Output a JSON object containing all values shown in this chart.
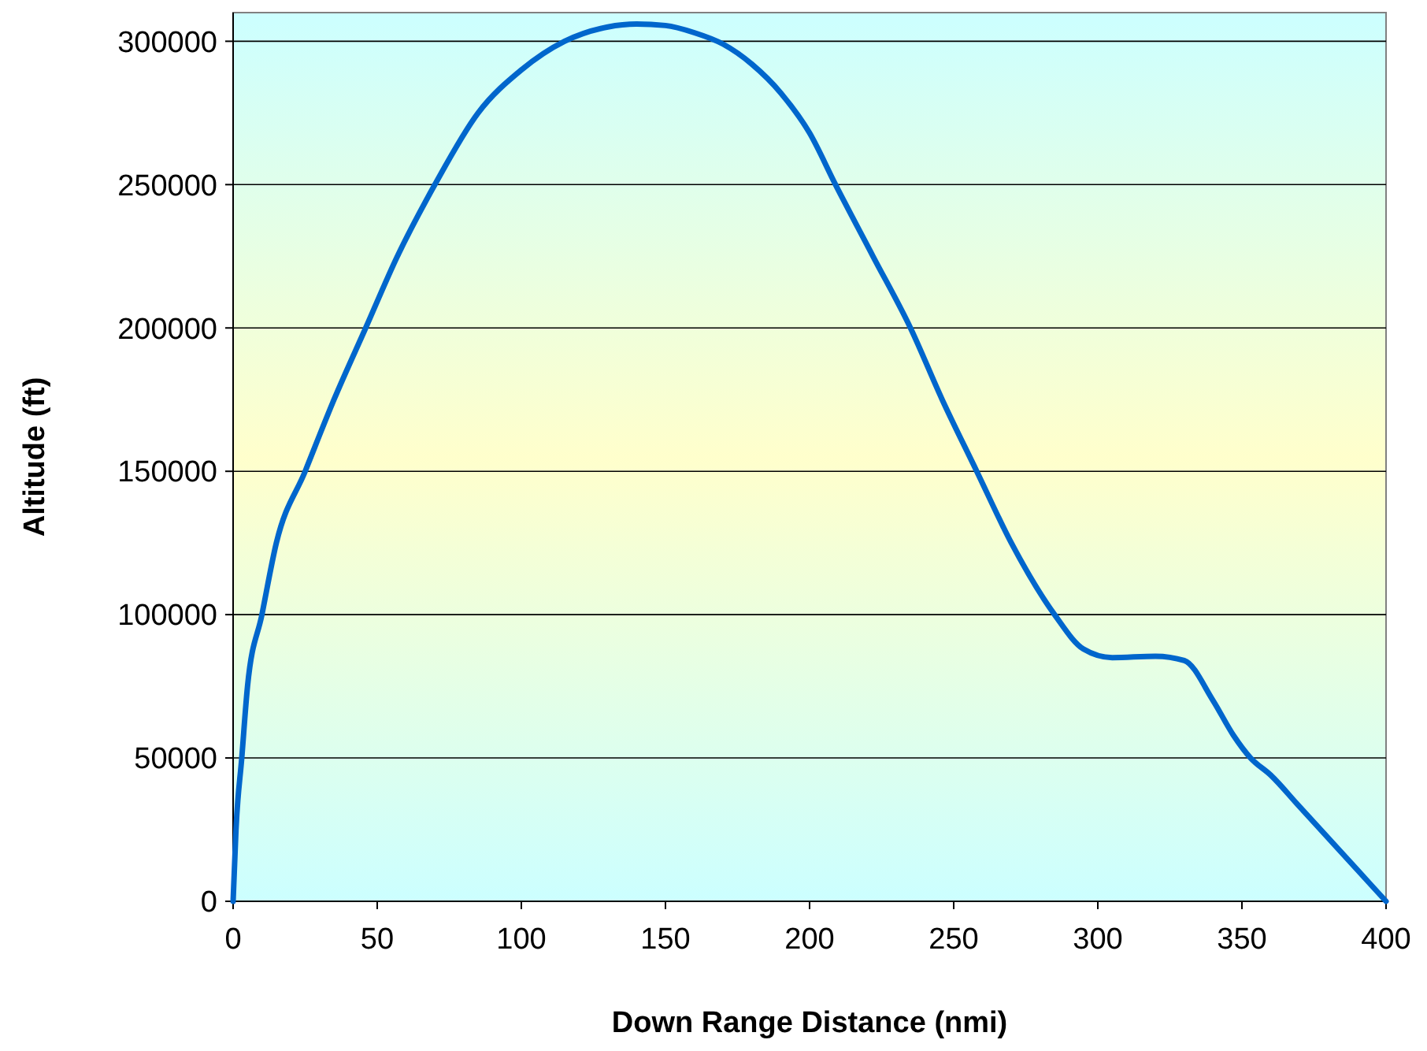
{
  "chart_data": {
    "type": "line",
    "xlabel": "Down Range Distance (nmi)",
    "ylabel": "Altitude (ft)",
    "x": [
      0,
      1,
      3,
      5,
      10,
      15,
      25,
      35,
      46,
      57,
      70,
      85,
      100,
      115,
      130,
      140,
      150,
      160,
      170,
      180,
      190,
      200,
      209,
      222,
      235,
      246,
      258,
      270,
      285,
      295,
      305,
      320,
      330,
      340,
      347,
      353,
      360,
      370,
      380,
      390,
      400
    ],
    "series": [
      {
        "color": "#0066cc",
        "values": [
          0,
          25000,
          50000,
          75000,
          100000,
          125000,
          150000,
          175000,
          200000,
          225000,
          250000,
          275000,
          290000,
          300000,
          305000,
          306000,
          305500,
          303000,
          299000,
          292000,
          282000,
          268000,
          250000,
          225000,
          200000,
          175000,
          150000,
          125000,
          100000,
          88000,
          85000,
          85500,
          84000,
          70000,
          58000,
          50000,
          44000,
          33000,
          22000,
          11000,
          0
        ]
      }
    ],
    "xlim": [
      0,
      400
    ],
    "xticks": [
      0,
      50,
      100,
      150,
      200,
      250,
      300,
      350,
      400
    ],
    "ylim": [
      0,
      310000
    ],
    "yticks": [
      0,
      50000,
      100000,
      150000,
      200000,
      250000,
      300000
    ],
    "grid": "y",
    "marker": "none",
    "line_style": "solid"
  }
}
